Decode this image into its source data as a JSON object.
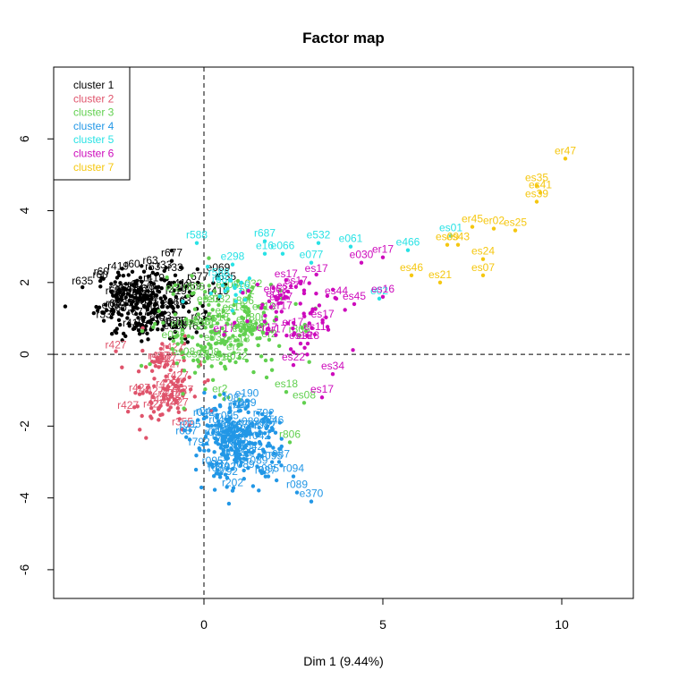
{
  "chart_data": {
    "type": "scatter",
    "title": "Factor map",
    "xlabel": "Dim 1 (9.44%)",
    "ylabel": "",
    "xlim": [
      -4.2,
      12
    ],
    "ylim": [
      -6.8,
      8
    ],
    "xticks": [
      0,
      5,
      10
    ],
    "yticks": [
      -6,
      -4,
      -2,
      0,
      2,
      4,
      6
    ],
    "reference_lines": {
      "x": 0,
      "y": 0,
      "style": "dashed"
    },
    "legend": {
      "position": "top-left",
      "entries": [
        {
          "name": "cluster 1",
          "color": "#000000"
        },
        {
          "name": "cluster 2",
          "color": "#DF536B"
        },
        {
          "name": "cluster 3",
          "color": "#61D04F"
        },
        {
          "name": "cluster 4",
          "color": "#2297E6"
        },
        {
          "name": "cluster 5",
          "color": "#28E2E5"
        },
        {
          "name": "cluster 6",
          "color": "#CD0BBC"
        },
        {
          "name": "cluster 7",
          "color": "#F5C710"
        }
      ]
    },
    "clusters": [
      {
        "name": "cluster 1",
        "color": "#000000",
        "blob": {
          "cx": -1.6,
          "cy": 1.4,
          "sx": 0.7,
          "sy": 0.5,
          "n": 260
        },
        "labeled_points": [
          {
            "label": "r677",
            "x": -0.9,
            "y": 2.6
          },
          {
            "label": "r60",
            "x": -2.0,
            "y": 2.3
          },
          {
            "label": "r63",
            "x": -1.5,
            "y": 2.4
          },
          {
            "label": "e069",
            "x": 0.4,
            "y": 2.2
          },
          {
            "label": "r635",
            "x": 0.6,
            "y": 1.95
          },
          {
            "label": "r419",
            "x": 0.4,
            "y": 1.55
          },
          {
            "label": "r33",
            "x": -0.8,
            "y": 2.2
          }
        ]
      },
      {
        "name": "cluster 2",
        "color": "#DF536B",
        "blob": {
          "cx": -1.1,
          "cy": -0.9,
          "sx": 0.5,
          "sy": 0.6,
          "n": 110
        },
        "labeled_points": [
          {
            "label": "r427",
            "x": -1.4,
            "y": -1.6
          },
          {
            "label": "r355",
            "x": -0.6,
            "y": -2.1
          },
          {
            "label": "r37",
            "x": -1.1,
            "y": -0.35
          }
        ]
      },
      {
        "name": "cluster 3",
        "color": "#61D04F",
        "blob": {
          "cx": 0.5,
          "cy": 0.6,
          "sx": 0.9,
          "sy": 0.7,
          "n": 190
        },
        "labeled_points": [
          {
            "label": "es18",
            "x": 2.3,
            "y": -1.05
          },
          {
            "label": "es08",
            "x": 2.8,
            "y": -1.35
          },
          {
            "label": "r806",
            "x": 2.4,
            "y": -2.45
          },
          {
            "label": "e032",
            "x": 1.3,
            "y": 1.75
          },
          {
            "label": "er2",
            "x": 1.2,
            "y": 1.55
          }
        ]
      },
      {
        "name": "cluster 4",
        "color": "#2297E6",
        "blob": {
          "cx": 0.9,
          "cy": -2.5,
          "sx": 0.6,
          "sy": 0.5,
          "n": 240
        },
        "labeled_points": [
          {
            "label": "r792",
            "x": 0.6,
            "y": -3.35
          },
          {
            "label": "r202",
            "x": 0.8,
            "y": -3.8
          },
          {
            "label": "r095",
            "x": 1.8,
            "y": -3.4
          },
          {
            "label": "r094",
            "x": 2.5,
            "y": -3.4
          },
          {
            "label": "r089",
            "x": 2.6,
            "y": -3.85
          },
          {
            "label": "e370",
            "x": 3.0,
            "y": -4.1
          },
          {
            "label": "r087",
            "x": 2.1,
            "y": -3.0
          },
          {
            "label": "e246",
            "x": 1.9,
            "y": -2.05
          },
          {
            "label": "r042",
            "x": 1.7,
            "y": -2.2
          },
          {
            "label": "e190",
            "x": 1.2,
            "y": -1.3
          }
        ]
      },
      {
        "name": "cluster 5",
        "color": "#28E2E5",
        "blob": {
          "cx": 0.6,
          "cy": 2.0,
          "sx": 0.5,
          "sy": 0.3,
          "n": 18
        },
        "labeled_points": [
          {
            "label": "r588",
            "x": -0.2,
            "y": 3.1
          },
          {
            "label": "r687",
            "x": 1.7,
            "y": 3.15
          },
          {
            "label": "e532",
            "x": 3.2,
            "y": 3.1
          },
          {
            "label": "e061",
            "x": 4.1,
            "y": 3.0
          },
          {
            "label": "e466",
            "x": 5.7,
            "y": 2.9
          },
          {
            "label": "e066",
            "x": 2.2,
            "y": 2.8
          },
          {
            "label": "e16",
            "x": 1.7,
            "y": 2.8
          },
          {
            "label": "e077",
            "x": 3.0,
            "y": 2.55
          },
          {
            "label": "e298",
            "x": 0.8,
            "y": 2.5
          },
          {
            "label": "es01",
            "x": 6.9,
            "y": 3.3
          },
          {
            "label": "e02",
            "x": 4.9,
            "y": 1.55
          }
        ]
      },
      {
        "name": "cluster 6",
        "color": "#CD0BBC",
        "blob": {
          "cx": 2.6,
          "cy": 1.2,
          "sx": 0.8,
          "sy": 0.6,
          "n": 70
        },
        "labeled_points": [
          {
            "label": "er17",
            "x": 5.0,
            "y": 2.7
          },
          {
            "label": "e030",
            "x": 4.4,
            "y": 2.55
          },
          {
            "label": "es16",
            "x": 5.0,
            "y": 1.6
          },
          {
            "label": "es45",
            "x": 4.2,
            "y": 1.4
          },
          {
            "label": "es44",
            "x": 3.7,
            "y": 1.55
          },
          {
            "label": "es34",
            "x": 3.6,
            "y": -0.55
          },
          {
            "label": "es17",
            "x": 3.3,
            "y": -1.2
          },
          {
            "label": "es11",
            "x": 3.1,
            "y": 0.55
          },
          {
            "label": "es22",
            "x": 2.5,
            "y": -0.3
          },
          {
            "label": "es13",
            "x": 2.7,
            "y": 0.3
          },
          {
            "label": "es28",
            "x": 2.9,
            "y": 0.3
          },
          {
            "label": "e062",
            "x": 2.0,
            "y": 1.6
          }
        ]
      },
      {
        "name": "cluster 7",
        "color": "#F5C710",
        "blob": {
          "cx": 8.0,
          "cy": 3.5,
          "sx": 0.4,
          "sy": 0.3,
          "n": 0
        },
        "labeled_points": [
          {
            "label": "er47",
            "x": 10.1,
            "y": 5.45
          },
          {
            "label": "es35",
            "x": 9.3,
            "y": 4.7
          },
          {
            "label": "es41",
            "x": 9.4,
            "y": 4.5
          },
          {
            "label": "es39",
            "x": 9.3,
            "y": 4.25
          },
          {
            "label": "es25",
            "x": 8.7,
            "y": 3.45
          },
          {
            "label": "er02",
            "x": 8.1,
            "y": 3.5
          },
          {
            "label": "er45",
            "x": 7.5,
            "y": 3.55
          },
          {
            "label": "es43",
            "x": 7.1,
            "y": 3.05
          },
          {
            "label": "es09",
            "x": 6.8,
            "y": 3.05
          },
          {
            "label": "es24",
            "x": 7.8,
            "y": 2.65
          },
          {
            "label": "es07",
            "x": 7.8,
            "y": 2.2
          },
          {
            "label": "es46",
            "x": 5.8,
            "y": 2.2
          },
          {
            "label": "es21",
            "x": 6.6,
            "y": 2.0
          }
        ]
      }
    ]
  }
}
